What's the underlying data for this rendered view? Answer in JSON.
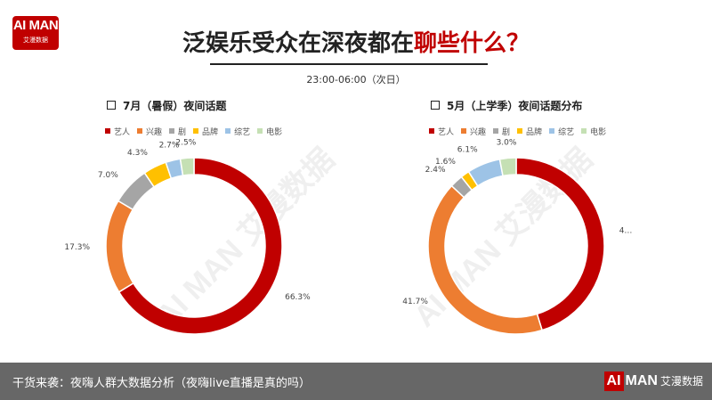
{
  "logo": {
    "line1": "AI MAN",
    "line2": "艾漫数据"
  },
  "header": {
    "title_main": "泛娱乐受众在深夜都在",
    "title_highlight": "聊些什么？",
    "subtitle": "23:00-06:00（次日）"
  },
  "watermark": "AI MAN 艾漫数据",
  "footer": {
    "caption": "干货来袭：夜嗨人群大数据分析（夜嗨live直播是真的吗）",
    "brand_ai": "AI",
    "brand_man": "MAN",
    "brand_cn": "艾漫数据"
  },
  "chart_data": [
    {
      "type": "pie",
      "title": "7月（暑假）夜间话题",
      "categories": [
        "艺人",
        "兴趣",
        "剧",
        "品牌",
        "综艺",
        "电影"
      ],
      "values": [
        66.3,
        17.3,
        7.0,
        4.3,
        2.7,
        2.5
      ],
      "labels": [
        "66.3%",
        "17.3%",
        "7.0%",
        "4.3%",
        "2.7%",
        "2.5%"
      ],
      "colors": [
        "#c00000",
        "#ed7d31",
        "#a5a5a5",
        "#ffc000",
        "#9dc3e6",
        "#c5e0b4"
      ],
      "legend_position": "top"
    },
    {
      "type": "pie",
      "title": "5月（上学季）夜间话题分布",
      "categories": [
        "艺人",
        "兴趣",
        "剧",
        "品牌",
        "综艺",
        "电影"
      ],
      "values": [
        45.3,
        41.7,
        2.4,
        1.6,
        6.1,
        3.0
      ],
      "labels": [
        "4…",
        "41.7%",
        "2.4%",
        "1.6%",
        "6.1%",
        "3.0%"
      ],
      "colors": [
        "#c00000",
        "#ed7d31",
        "#a5a5a5",
        "#ffc000",
        "#9dc3e6",
        "#c5e0b4"
      ],
      "legend_position": "top"
    }
  ]
}
